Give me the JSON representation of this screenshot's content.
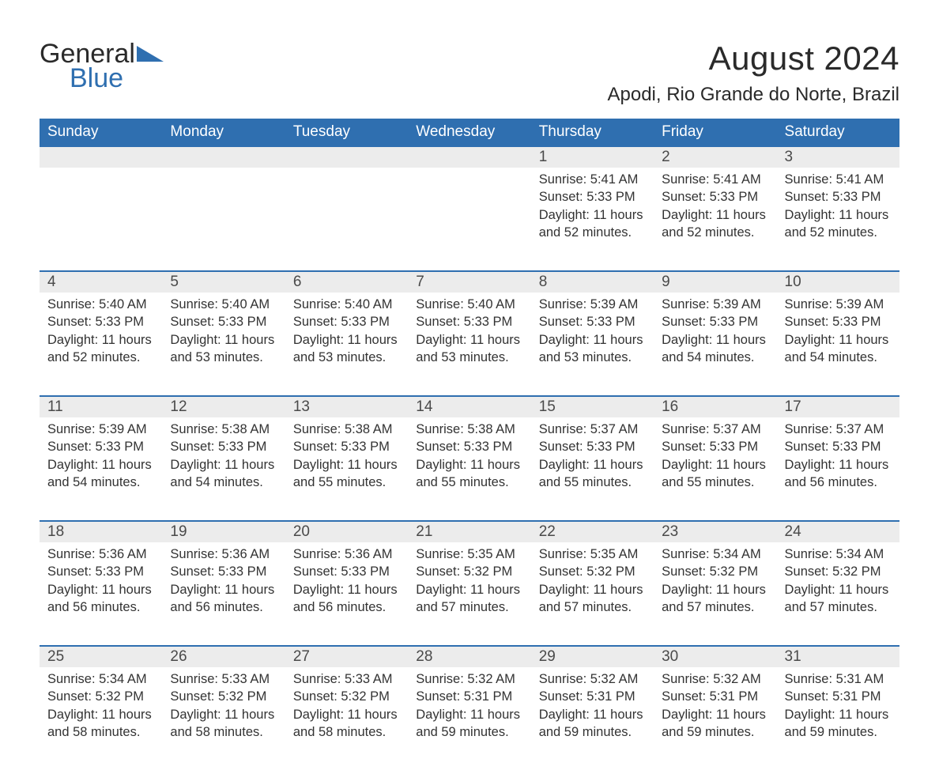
{
  "logo": {
    "text_general": "General",
    "text_blue": "Blue",
    "general_color": "#2a2a2a",
    "blue_color": "#2f6fb0",
    "icon_color": "#2f6fb0"
  },
  "title": "August 2024",
  "location": "Apodi, Rio Grande do Norte, Brazil",
  "colors": {
    "header_bg": "#2f6fb0",
    "header_text": "#ffffff",
    "daynum_bg": "#ececec",
    "daynum_border": "#2f6fb0",
    "text": "#333333",
    "background": "#ffffff"
  },
  "fonts": {
    "title_size_pt": 32,
    "location_size_pt": 18,
    "header_size_pt": 14,
    "daynum_size_pt": 14,
    "body_size_pt": 12
  },
  "day_headers": [
    "Sunday",
    "Monday",
    "Tuesday",
    "Wednesday",
    "Thursday",
    "Friday",
    "Saturday"
  ],
  "weeks": [
    [
      null,
      null,
      null,
      null,
      {
        "day": "1",
        "sunrise": "5:41 AM",
        "sunset": "5:33 PM",
        "daylight": "11 hours and 52 minutes."
      },
      {
        "day": "2",
        "sunrise": "5:41 AM",
        "sunset": "5:33 PM",
        "daylight": "11 hours and 52 minutes."
      },
      {
        "day": "3",
        "sunrise": "5:41 AM",
        "sunset": "5:33 PM",
        "daylight": "11 hours and 52 minutes."
      }
    ],
    [
      {
        "day": "4",
        "sunrise": "5:40 AM",
        "sunset": "5:33 PM",
        "daylight": "11 hours and 52 minutes."
      },
      {
        "day": "5",
        "sunrise": "5:40 AM",
        "sunset": "5:33 PM",
        "daylight": "11 hours and 53 minutes."
      },
      {
        "day": "6",
        "sunrise": "5:40 AM",
        "sunset": "5:33 PM",
        "daylight": "11 hours and 53 minutes."
      },
      {
        "day": "7",
        "sunrise": "5:40 AM",
        "sunset": "5:33 PM",
        "daylight": "11 hours and 53 minutes."
      },
      {
        "day": "8",
        "sunrise": "5:39 AM",
        "sunset": "5:33 PM",
        "daylight": "11 hours and 53 minutes."
      },
      {
        "day": "9",
        "sunrise": "5:39 AM",
        "sunset": "5:33 PM",
        "daylight": "11 hours and 54 minutes."
      },
      {
        "day": "10",
        "sunrise": "5:39 AM",
        "sunset": "5:33 PM",
        "daylight": "11 hours and 54 minutes."
      }
    ],
    [
      {
        "day": "11",
        "sunrise": "5:39 AM",
        "sunset": "5:33 PM",
        "daylight": "11 hours and 54 minutes."
      },
      {
        "day": "12",
        "sunrise": "5:38 AM",
        "sunset": "5:33 PM",
        "daylight": "11 hours and 54 minutes."
      },
      {
        "day": "13",
        "sunrise": "5:38 AM",
        "sunset": "5:33 PM",
        "daylight": "11 hours and 55 minutes."
      },
      {
        "day": "14",
        "sunrise": "5:38 AM",
        "sunset": "5:33 PM",
        "daylight": "11 hours and 55 minutes."
      },
      {
        "day": "15",
        "sunrise": "5:37 AM",
        "sunset": "5:33 PM",
        "daylight": "11 hours and 55 minutes."
      },
      {
        "day": "16",
        "sunrise": "5:37 AM",
        "sunset": "5:33 PM",
        "daylight": "11 hours and 55 minutes."
      },
      {
        "day": "17",
        "sunrise": "5:37 AM",
        "sunset": "5:33 PM",
        "daylight": "11 hours and 56 minutes."
      }
    ],
    [
      {
        "day": "18",
        "sunrise": "5:36 AM",
        "sunset": "5:33 PM",
        "daylight": "11 hours and 56 minutes."
      },
      {
        "day": "19",
        "sunrise": "5:36 AM",
        "sunset": "5:33 PM",
        "daylight": "11 hours and 56 minutes."
      },
      {
        "day": "20",
        "sunrise": "5:36 AM",
        "sunset": "5:33 PM",
        "daylight": "11 hours and 56 minutes."
      },
      {
        "day": "21",
        "sunrise": "5:35 AM",
        "sunset": "5:32 PM",
        "daylight": "11 hours and 57 minutes."
      },
      {
        "day": "22",
        "sunrise": "5:35 AM",
        "sunset": "5:32 PM",
        "daylight": "11 hours and 57 minutes."
      },
      {
        "day": "23",
        "sunrise": "5:34 AM",
        "sunset": "5:32 PM",
        "daylight": "11 hours and 57 minutes."
      },
      {
        "day": "24",
        "sunrise": "5:34 AM",
        "sunset": "5:32 PM",
        "daylight": "11 hours and 57 minutes."
      }
    ],
    [
      {
        "day": "25",
        "sunrise": "5:34 AM",
        "sunset": "5:32 PM",
        "daylight": "11 hours and 58 minutes."
      },
      {
        "day": "26",
        "sunrise": "5:33 AM",
        "sunset": "5:32 PM",
        "daylight": "11 hours and 58 minutes."
      },
      {
        "day": "27",
        "sunrise": "5:33 AM",
        "sunset": "5:32 PM",
        "daylight": "11 hours and 58 minutes."
      },
      {
        "day": "28",
        "sunrise": "5:32 AM",
        "sunset": "5:31 PM",
        "daylight": "11 hours and 59 minutes."
      },
      {
        "day": "29",
        "sunrise": "5:32 AM",
        "sunset": "5:31 PM",
        "daylight": "11 hours and 59 minutes."
      },
      {
        "day": "30",
        "sunrise": "5:32 AM",
        "sunset": "5:31 PM",
        "daylight": "11 hours and 59 minutes."
      },
      {
        "day": "31",
        "sunrise": "5:31 AM",
        "sunset": "5:31 PM",
        "daylight": "11 hours and 59 minutes."
      }
    ]
  ],
  "labels": {
    "sunrise_prefix": "Sunrise: ",
    "sunset_prefix": "Sunset: ",
    "daylight_prefix": "Daylight: "
  }
}
